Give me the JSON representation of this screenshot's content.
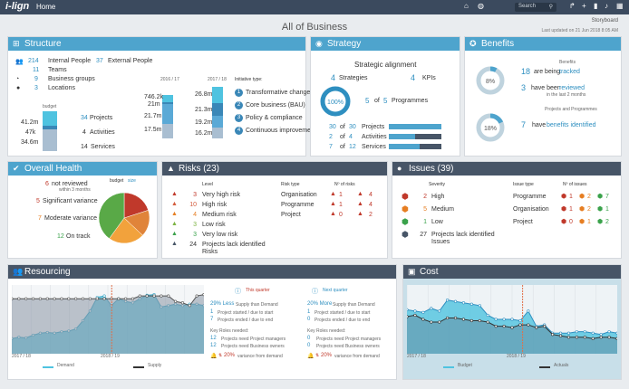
{
  "topbar": {
    "logo": "i-lign",
    "home": "Home",
    "search_placeholder": "Search"
  },
  "header": {
    "title": "All of Business",
    "storyboard": "Storyboard",
    "updated": "Last updated on 21 Jun 2018 8:05 AM"
  },
  "structure": {
    "title": "Structure",
    "people_internal_n": "214",
    "people_internal_l": "Internal People",
    "people_external_n": "37",
    "people_external_l": "External People",
    "teams_n": "11",
    "teams_l": "Teams",
    "groups_n": "9",
    "groups_l": "Business groups",
    "locations_n": "3",
    "locations_l": "Locations",
    "budget_label": "budget",
    "b1": "41.2m",
    "b2": "47k",
    "b3": "34.6m",
    "projects_n": "34",
    "projects_l": "Projects",
    "activities_n": "4",
    "activities_l": "Activities",
    "services_n": "14",
    "services_l": "Services",
    "col1_year": "2016 / 17",
    "col2_year": "2017 / 18",
    "init_label": "Initiative type:",
    "c1v1": "746.2k",
    "c1v2": "21m",
    "c1v3": "21.7m",
    "c1v4": "17.5m",
    "c2v1": "26.8m",
    "c2v2": "21.3m",
    "c2v3": "19.2m",
    "c2v4": "16.2m",
    "types": [
      {
        "n": "1",
        "l": "Transformative change"
      },
      {
        "n": "2",
        "l": "Core business (BAU)"
      },
      {
        "n": "3",
        "l": "Policy & compliance"
      },
      {
        "n": "4",
        "l": "Continuous improvement"
      }
    ]
  },
  "strategy": {
    "title": "Strategy",
    "subtitle": "Strategic alignment",
    "strategies_n": "4",
    "strategies_l": "Strategies",
    "kpis_n": "4",
    "kpis_l": "KPIs",
    "pct": "100%",
    "prog_a": "5",
    "prog_of": "of",
    "prog_b": "5",
    "prog_l": "Programmes",
    "rows": [
      {
        "a": "30",
        "b": "30",
        "l": "Projects",
        "fill": 1.0
      },
      {
        "a": "2",
        "b": "4",
        "l": "Activities",
        "fill": 0.5
      },
      {
        "a": "7",
        "b": "12",
        "l": "Services",
        "fill": 0.58
      }
    ],
    "of": "of"
  },
  "benefits": {
    "title": "Benefits",
    "sub1": "Benefits",
    "pct1": "8%",
    "pct1_v": 0.08,
    "n1": "18",
    "l1a": "are being",
    "l1b": "tracked",
    "n2": "3",
    "l2a": "have been",
    "l2b": "reviewed",
    "l2c": "in the last 2 months",
    "sub2": "Projects and Programmes",
    "pct2": "18%",
    "pct2_v": 0.18,
    "n3": "7",
    "l3a": "have",
    "l3b": "benefits identified"
  },
  "health": {
    "title": "Overall Health",
    "legend_a": "budget",
    "legend_b": "size",
    "r1_n": "6",
    "r1_l": "not reviewed",
    "r1_s": "within 3 months",
    "r2_n": "5",
    "r2_l": "Significant variance",
    "r3_n": "7",
    "r3_l": "Moderate variance",
    "r4_n": "12",
    "r4_l": "On track",
    "pie": [
      0.2,
      0.17,
      0.23,
      0.4
    ]
  },
  "risks": {
    "title": "Risks (23)",
    "level_h": "Level",
    "type_h": "Risk type",
    "nr_h": "Nº of risks",
    "levels": [
      {
        "n": "3",
        "l": "Very high risk",
        "c": "#c0392b"
      },
      {
        "n": "10",
        "l": "High risk",
        "c": "#d35b3c"
      },
      {
        "n": "4",
        "l": "Medium risk",
        "c": "#e67e22"
      },
      {
        "n": "3",
        "l": "Low risk",
        "c": "#7cb342"
      },
      {
        "n": "3",
        "l": "Very low risk",
        "c": "#3aa24b"
      }
    ],
    "lack_n": "24",
    "lack_l": "Projects lack identified",
    "lack_l2": "Risks",
    "types": [
      {
        "l": "Organisation",
        "a": "1",
        "b": "4"
      },
      {
        "l": "Programme",
        "a": "1",
        "b": "4"
      },
      {
        "l": "Project",
        "a": "0",
        "b": "2"
      }
    ]
  },
  "issues": {
    "title": "Issues (39)",
    "sev_h": "Severity",
    "type_h": "Issue type",
    "nr_h": "Nº of issues",
    "levels": [
      {
        "n": "2",
        "l": "High",
        "c": "#c0392b"
      },
      {
        "n": "5",
        "l": "Medium",
        "c": "#e67e22"
      },
      {
        "n": "1",
        "l": "Low",
        "c": "#3aa24b"
      }
    ],
    "lack_n": "27",
    "lack_l": "Projects lack identified",
    "lack_l2": "Issues",
    "types": [
      {
        "l": "Programme",
        "a": "1",
        "b": "2",
        "c": "7"
      },
      {
        "l": "Organisation",
        "a": "1",
        "b": "2",
        "c": "1"
      },
      {
        "l": "Project",
        "a": "0",
        "b": "1",
        "c": "2"
      }
    ]
  },
  "resourcing": {
    "title": "Resourcing",
    "x1": "2017 / 18",
    "x2": "2018 / 19",
    "legend_demand": "Demand",
    "legend_supply": "Supply",
    "this_q": "This quarter",
    "next_q": "Next quarter",
    "tq_pct": "29% Less",
    "tq_pct_l": "Supply than Demand",
    "tq_a_n": "1",
    "tq_a_l": "Project started / due to start",
    "tq_b_n": "7",
    "tq_b_l": "Projects ended / due to end",
    "nq_pct": "20% More",
    "nq_pct_l": "Supply than Demand",
    "nq_a_n": "1",
    "nq_a_l": "Project started / due to start",
    "nq_b_n": "0",
    "nq_b_l": "Projects ended / due to end",
    "kr": "Key Roles needed:",
    "tq_pm_n": "12",
    "tq_pm_l": "Projects need Project managers",
    "tq_bo_n": "12",
    "tq_bo_l": "Projects need Business owners",
    "nq_pm_n": "0",
    "nq_pm_l": "Projects need Project managers",
    "nq_bo_n": "0",
    "nq_bo_l": "Projects need Business owners",
    "tq_var": "20%",
    "nq_var": "20%",
    "var_l": "variance from demand"
  },
  "cost": {
    "title": "Cost",
    "x1": "2017 / 18",
    "x2": "2018 / 19",
    "legend_budget": "Budget",
    "legend_actuals": "Actuals"
  },
  "chart_data": [
    {
      "type": "area",
      "title": "Resourcing",
      "series": [
        {
          "name": "Demand",
          "values": [
            22,
            24,
            23,
            27,
            30,
            31,
            30,
            32,
            33,
            36,
            48,
            62,
            82,
            84,
            70,
            80,
            76,
            74,
            80,
            85,
            86,
            68,
            70,
            72,
            70,
            72,
            72,
            70
          ]
        },
        {
          "name": "Supply",
          "values": [
            80,
            80,
            80,
            80,
            80,
            80,
            80,
            80,
            80,
            80,
            80,
            80,
            80,
            80,
            80,
            80,
            80,
            80,
            84,
            84,
            84,
            84,
            84,
            76,
            74,
            70,
            84,
            86
          ]
        }
      ],
      "ylim": [
        0,
        100
      ]
    },
    {
      "type": "area",
      "title": "Cost",
      "series": [
        {
          "name": "Budget",
          "values": [
            64,
            62,
            60,
            66,
            62,
            78,
            76,
            74,
            72,
            70,
            56,
            50,
            50,
            50,
            48,
            62,
            40,
            42,
            30,
            30,
            30,
            32,
            32,
            30,
            28,
            32,
            30
          ]
        },
        {
          "name": "Actuals",
          "values": [
            54,
            56,
            50,
            46,
            46,
            52,
            52,
            50,
            48,
            48,
            46,
            40,
            40,
            38,
            42,
            42,
            38,
            40,
            28,
            26,
            24,
            24,
            24,
            22,
            24,
            24,
            22
          ]
        }
      ],
      "ylim": [
        0,
        100
      ]
    }
  ]
}
